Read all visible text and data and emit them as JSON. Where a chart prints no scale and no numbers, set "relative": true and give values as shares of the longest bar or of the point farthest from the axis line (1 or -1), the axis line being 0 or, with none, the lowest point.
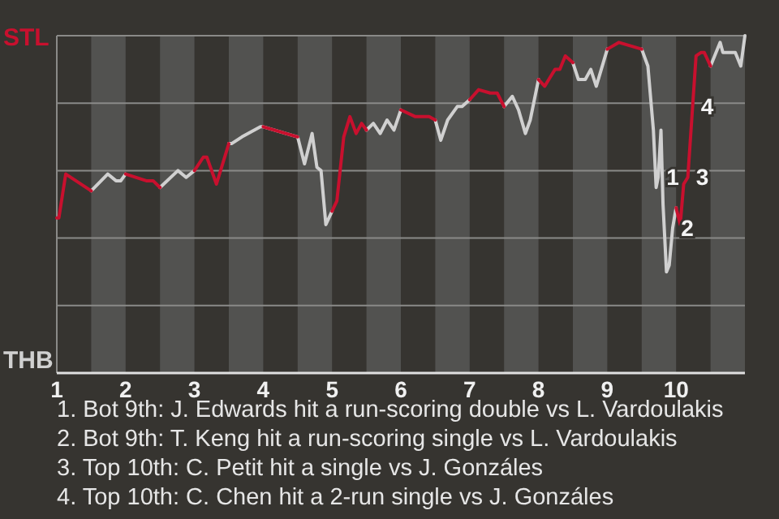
{
  "chart_data": {
    "type": "line",
    "relative": true,
    "grid": "y",
    "marker": "none",
    "line_style": "solid",
    "legend": "left",
    "xlim": [
      1,
      11
    ],
    "xticks": [
      1,
      2,
      3,
      4,
      5,
      6,
      7,
      8,
      9,
      10
    ],
    "x": [
      1,
      1.03,
      1.13,
      1.5,
      1.74,
      1.86,
      1.93,
      2,
      2.3,
      2.4,
      2.5,
      2.76,
      2.88,
      3,
      3.13,
      3.18,
      3.32,
      3.5,
      3.54,
      3.69,
      3.96,
      4,
      4.5,
      4.6,
      4.71,
      4.78,
      4.84,
      4.91,
      5,
      5.07,
      5.17,
      5.26,
      5.35,
      5.43,
      5.5,
      5.6,
      5.7,
      5.8,
      5.9,
      6,
      6.21,
      6.41,
      6.5,
      6.58,
      6.68,
      6.82,
      6.89,
      7,
      7.13,
      7.3,
      7.4,
      7.5,
      7.62,
      7.71,
      7.81,
      7.88,
      8,
      8.09,
      8.15,
      8.24,
      8.31,
      8.39,
      8.5,
      8.58,
      8.68,
      8.76,
      8.84,
      9,
      9.17,
      9.5,
      9.59,
      9.67,
      9.71,
      9.74,
      9.78,
      9.81,
      9.86,
      9.9,
      9.95,
      10,
      10.06,
      10.11,
      10.17,
      10.24,
      10.29,
      10.36,
      10.41,
      10.5,
      10.64,
      10.68,
      10.86,
      10.94,
      11
    ],
    "series": [
      {
        "name": "THB",
        "color": "#d0d0d0",
        "values": [
          null,
          null,
          null,
          0.54,
          0.59,
          0.57,
          0.57,
          0.59,
          null,
          null,
          0.55,
          0.6,
          0.58,
          0.6,
          null,
          null,
          null,
          0.68,
          0.68,
          0.7,
          0.73,
          0.73,
          0.7,
          0.62,
          0.71,
          0.61,
          0.6,
          0.44,
          0.48,
          null,
          null,
          null,
          null,
          null,
          0.72,
          0.74,
          0.71,
          0.75,
          0.72,
          0.78,
          null,
          null,
          0.75,
          0.69,
          0.75,
          0.79,
          0.79,
          0.81,
          null,
          null,
          null,
          0.79,
          0.82,
          0.78,
          0.71,
          0.75,
          0.87,
          null,
          null,
          null,
          null,
          null,
          0.92,
          0.87,
          0.87,
          0.9,
          0.85,
          0.96,
          null,
          0.96,
          0.91,
          0.72,
          0.55,
          0.58,
          0.72,
          0.5,
          0.3,
          0.32,
          0.43,
          0.49,
          null,
          null,
          null,
          null,
          null,
          null,
          null,
          0.91,
          0.98,
          0.95,
          0.95,
          0.91,
          1
        ]
      },
      {
        "name": "STL",
        "color": "#c8102e",
        "values": [
          0.46,
          0.46,
          0.59,
          0.54,
          null,
          null,
          null,
          0.59,
          0.57,
          0.57,
          0.55,
          null,
          null,
          0.6,
          0.64,
          0.64,
          0.56,
          0.68,
          null,
          null,
          null,
          0.73,
          0.7,
          null,
          null,
          null,
          null,
          null,
          0.48,
          0.51,
          0.7,
          0.76,
          0.71,
          0.74,
          0.72,
          null,
          null,
          null,
          null,
          0.78,
          0.76,
          0.76,
          0.75,
          null,
          null,
          null,
          null,
          0.81,
          0.84,
          0.83,
          0.83,
          0.79,
          null,
          null,
          null,
          null,
          0.87,
          0.85,
          0.87,
          0.9,
          0.9,
          0.94,
          0.92,
          null,
          null,
          null,
          null,
          0.96,
          0.98,
          0.96,
          null,
          null,
          null,
          null,
          null,
          null,
          null,
          null,
          null,
          0.49,
          0.44,
          0.56,
          0.58,
          0.79,
          0.94,
          0.95,
          0.95,
          0.91,
          null,
          null,
          null,
          null,
          null
        ]
      }
    ],
    "bands": [
      {
        "axis": "x",
        "from": 1.5,
        "to": 2,
        "color": "#525250"
      },
      {
        "axis": "x",
        "from": 2.5,
        "to": 3,
        "color": "#525250"
      },
      {
        "axis": "x",
        "from": 3.5,
        "to": 4,
        "color": "#525250"
      },
      {
        "axis": "x",
        "from": 4.5,
        "to": 5,
        "color": "#525250"
      },
      {
        "axis": "x",
        "from": 5.5,
        "to": 6,
        "color": "#525250"
      },
      {
        "axis": "x",
        "from": 6.5,
        "to": 7,
        "color": "#525250"
      },
      {
        "axis": "x",
        "from": 7.5,
        "to": 8,
        "color": "#525250"
      },
      {
        "axis": "x",
        "from": 8.5,
        "to": 9,
        "color": "#525250"
      },
      {
        "axis": "x",
        "from": 9.5,
        "to": 10,
        "color": "#525250"
      },
      {
        "axis": "x",
        "from": 10.5,
        "to": 11,
        "color": "#525250"
      }
    ],
    "annotations": [
      {
        "text": "1",
        "x": 9.74,
        "y": 0.58
      },
      {
        "text": "2",
        "x": 9.95,
        "y": 0.43
      },
      {
        "text": "3",
        "x": 10.17,
        "y": 0.58
      },
      {
        "text": "4",
        "x": 10.24,
        "y": 0.79
      },
      "1. Bot 9th: J. Edwards hit a run-scoring double vs L. Vardoulakis",
      "2. Bot 9th: T. Keng hit a run-scoring single vs L. Vardoulakis",
      "3. Top 10th: C. Petit hit a single vs J. Gonzáles",
      "4. Top 10th: C. Chen hit a 2-run single vs J. Gonzáles"
    ]
  }
}
